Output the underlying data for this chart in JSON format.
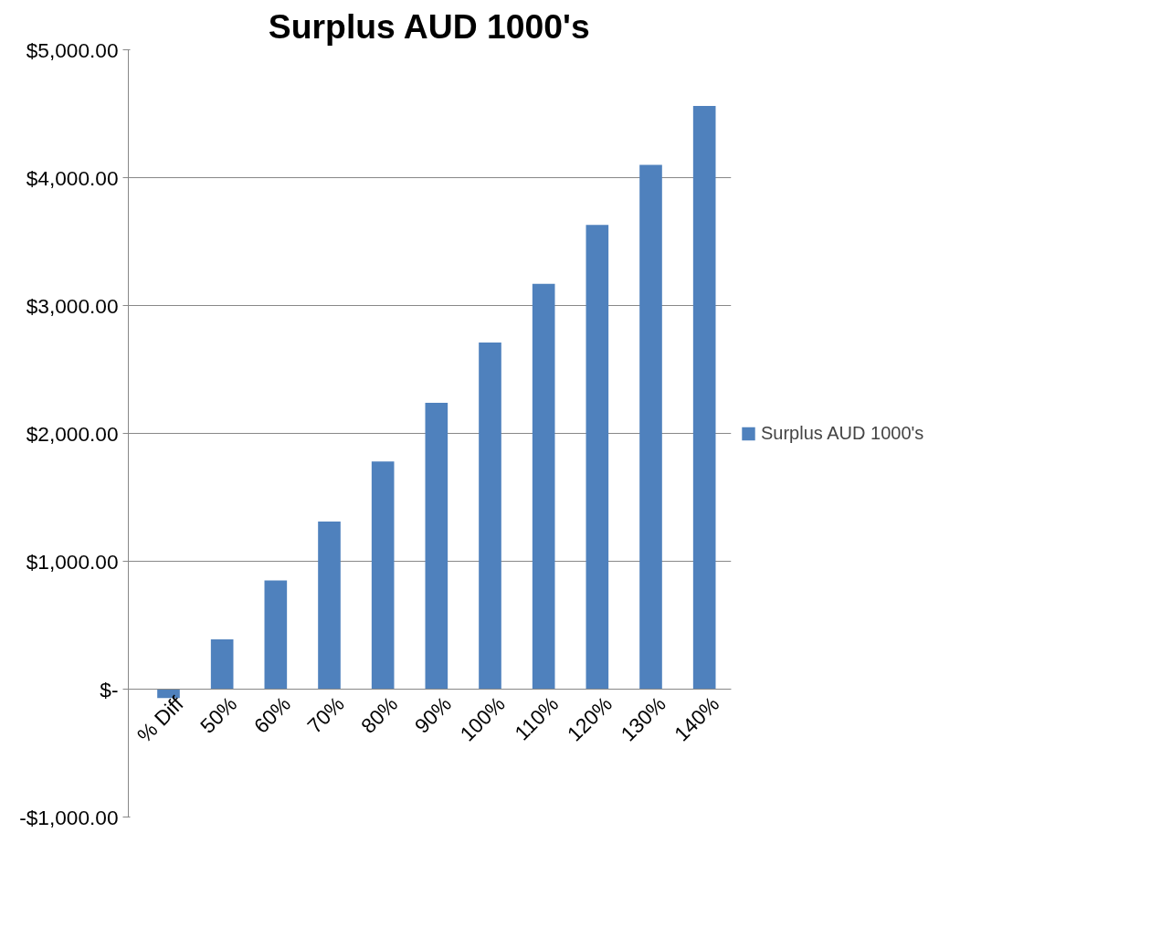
{
  "chart_data": {
    "type": "bar",
    "title": "Surplus AUD 1000's",
    "categories": [
      "% Diff",
      "50%",
      "60%",
      "70%",
      "80%",
      "90%",
      "100%",
      "110%",
      "120%",
      "130%",
      "140%"
    ],
    "series": [
      {
        "name": "Surplus AUD 1000's",
        "color": "#4f81bd",
        "values": [
          -70,
          390,
          850,
          1310,
          1780,
          2240,
          2710,
          3170,
          3630,
          4100,
          4560
        ]
      }
    ],
    "ylim": [
      -1000,
      5000
    ],
    "yticks": [
      {
        "value": -1000,
        "label": "-$1,000.00"
      },
      {
        "value": 0,
        "label": "$-"
      },
      {
        "value": 1000,
        "label": "$1,000.00"
      },
      {
        "value": 2000,
        "label": "$2,000.00"
      },
      {
        "value": 3000,
        "label": "$3,000.00"
      },
      {
        "value": 4000,
        "label": "$4,000.00"
      },
      {
        "value": 5000,
        "label": "$5,000.00"
      }
    ],
    "grid": "y",
    "legend": "right"
  }
}
